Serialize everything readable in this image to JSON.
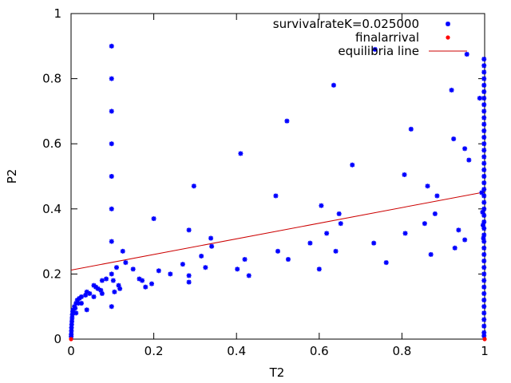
{
  "chart_data": {
    "type": "scatter",
    "xlabel": "T2",
    "ylabel": "P2",
    "xlim": [
      0,
      1
    ],
    "ylim": [
      0,
      1
    ],
    "x_ticks": [
      "0",
      "0.2",
      "0.4",
      "0.6",
      "0.8",
      "1"
    ],
    "y_ticks": [
      "0",
      "0.2",
      "0.4",
      "0.6",
      "0.8",
      "1"
    ],
    "grid": false,
    "legend_position": "top-right",
    "colors": {
      "survival": "#0000ff",
      "final": "#ff0000",
      "line": "#cc0000"
    },
    "series": [
      {
        "name": "survivalrateK=0.025000",
        "marker": "star",
        "points": [
          [
            0.098,
            0.9
          ],
          [
            0.098,
            0.8
          ],
          [
            0.098,
            0.7
          ],
          [
            0.098,
            0.6
          ],
          [
            0.098,
            0.5
          ],
          [
            0.098,
            0.4
          ],
          [
            0.098,
            0.3
          ],
          [
            0.098,
            0.2
          ],
          [
            0.098,
            0.1
          ],
          [
            0.635,
            0.78
          ],
          [
            0.735,
            0.89
          ],
          [
            0.957,
            0.875
          ],
          [
            0.92,
            0.765
          ],
          [
            0.522,
            0.67
          ],
          [
            0.822,
            0.645
          ],
          [
            0.925,
            0.615
          ],
          [
            0.41,
            0.57
          ],
          [
            0.952,
            0.585
          ],
          [
            0.962,
            0.55
          ],
          [
            0.68,
            0.535
          ],
          [
            0.806,
            0.505
          ],
          [
            0.297,
            0.47
          ],
          [
            0.862,
            0.47
          ],
          [
            0.885,
            0.44
          ],
          [
            0.495,
            0.44
          ],
          [
            0.605,
            0.41
          ],
          [
            0.648,
            0.385
          ],
          [
            0.88,
            0.385
          ],
          [
            0.652,
            0.355
          ],
          [
            0.855,
            0.355
          ],
          [
            0.618,
            0.325
          ],
          [
            0.808,
            0.325
          ],
          [
            0.285,
            0.335
          ],
          [
            0.338,
            0.31
          ],
          [
            0.578,
            0.295
          ],
          [
            0.732,
            0.295
          ],
          [
            0.937,
            0.335
          ],
          [
            0.952,
            0.305
          ],
          [
            0.928,
            0.28
          ],
          [
            0.34,
            0.285
          ],
          [
            0.5,
            0.27
          ],
          [
            0.64,
            0.27
          ],
          [
            0.87,
            0.26
          ],
          [
            0.125,
            0.27
          ],
          [
            0.315,
            0.255
          ],
          [
            0.42,
            0.245
          ],
          [
            0.525,
            0.245
          ],
          [
            0.132,
            0.235
          ],
          [
            0.762,
            0.235
          ],
          [
            0.27,
            0.23
          ],
          [
            0.11,
            0.22
          ],
          [
            0.15,
            0.215
          ],
          [
            0.212,
            0.21
          ],
          [
            0.402,
            0.215
          ],
          [
            0.6,
            0.215
          ],
          [
            0.325,
            0.22
          ],
          [
            0.24,
            0.2
          ],
          [
            0.285,
            0.195
          ],
          [
            0.43,
            0.195
          ],
          [
            0.165,
            0.185
          ],
          [
            0.102,
            0.18
          ],
          [
            0.172,
            0.18
          ],
          [
            0.075,
            0.18
          ],
          [
            0.085,
            0.185
          ],
          [
            0.195,
            0.17
          ],
          [
            0.285,
            0.175
          ],
          [
            0.115,
            0.165
          ],
          [
            0.18,
            0.16
          ],
          [
            0.118,
            0.155
          ],
          [
            0.055,
            0.165
          ],
          [
            0.06,
            0.16
          ],
          [
            0.065,
            0.155
          ],
          [
            0.072,
            0.15
          ],
          [
            0.075,
            0.14
          ],
          [
            0.105,
            0.145
          ],
          [
            0.045,
            0.14
          ],
          [
            0.038,
            0.145
          ],
          [
            0.035,
            0.135
          ],
          [
            0.055,
            0.13
          ],
          [
            0.025,
            0.13
          ],
          [
            0.02,
            0.125
          ],
          [
            0.015,
            0.12
          ],
          [
            0.018,
            0.11
          ],
          [
            0.012,
            0.11
          ],
          [
            0.025,
            0.11
          ],
          [
            0.008,
            0.1
          ],
          [
            0.01,
            0.095
          ],
          [
            0.005,
            0.09
          ],
          [
            0.004,
            0.085
          ],
          [
            0.012,
            0.08
          ],
          [
            0.003,
            0.075
          ],
          [
            0.0025,
            0.065
          ],
          [
            0.002,
            0.055
          ],
          [
            0.0015,
            0.045
          ],
          [
            0.001,
            0.035
          ],
          [
            0.0008,
            0.025
          ],
          [
            0.0005,
            0.015
          ],
          [
            0.0003,
            0.008
          ],
          [
            0.038,
            0.09
          ],
          [
            0.2,
            0.37
          ],
          [
            0.9985,
            0.86
          ],
          [
            0.9985,
            0.84
          ],
          [
            0.9985,
            0.82
          ],
          [
            0.9985,
            0.8
          ],
          [
            0.9985,
            0.78
          ],
          [
            0.9985,
            0.76
          ],
          [
            0.9985,
            0.74
          ],
          [
            0.9985,
            0.72
          ],
          [
            0.9985,
            0.7
          ],
          [
            0.9985,
            0.68
          ],
          [
            0.9985,
            0.66
          ],
          [
            0.9985,
            0.64
          ],
          [
            0.9985,
            0.62
          ],
          [
            0.9985,
            0.6
          ],
          [
            0.9985,
            0.58
          ],
          [
            0.9985,
            0.56
          ],
          [
            0.9985,
            0.54
          ],
          [
            0.9985,
            0.52
          ],
          [
            0.9985,
            0.5
          ],
          [
            0.9985,
            0.48
          ],
          [
            0.9985,
            0.46
          ],
          [
            0.9985,
            0.44
          ],
          [
            0.9985,
            0.42
          ],
          [
            0.9985,
            0.4
          ],
          [
            0.9985,
            0.38
          ],
          [
            0.9985,
            0.36
          ],
          [
            0.9985,
            0.34
          ],
          [
            0.9985,
            0.32
          ],
          [
            0.9985,
            0.3
          ],
          [
            0.9985,
            0.28
          ],
          [
            0.9985,
            0.26
          ],
          [
            0.9985,
            0.24
          ],
          [
            0.9985,
            0.22
          ],
          [
            0.9985,
            0.2
          ],
          [
            0.9985,
            0.18
          ],
          [
            0.9985,
            0.16
          ],
          [
            0.9985,
            0.14
          ],
          [
            0.9985,
            0.12
          ],
          [
            0.9985,
            0.1
          ],
          [
            0.9985,
            0.08
          ],
          [
            0.9985,
            0.06
          ],
          [
            0.9985,
            0.04
          ],
          [
            0.9985,
            0.02
          ],
          [
            0.9985,
            0.01
          ],
          [
            0.993,
            0.45
          ],
          [
            0.995,
            0.39
          ],
          [
            0.996,
            0.35
          ],
          [
            0.997,
            0.31
          ],
          [
            0.988,
            0.74
          ]
        ]
      },
      {
        "name": "finalarrival",
        "marker": "dot",
        "points": [
          [
            0.0,
            0.0
          ],
          [
            1.0,
            0.0
          ]
        ]
      },
      {
        "name": "equilibria line",
        "type": "line",
        "points": [
          [
            0.0,
            0.212
          ],
          [
            1.0,
            0.452
          ]
        ]
      }
    ]
  }
}
